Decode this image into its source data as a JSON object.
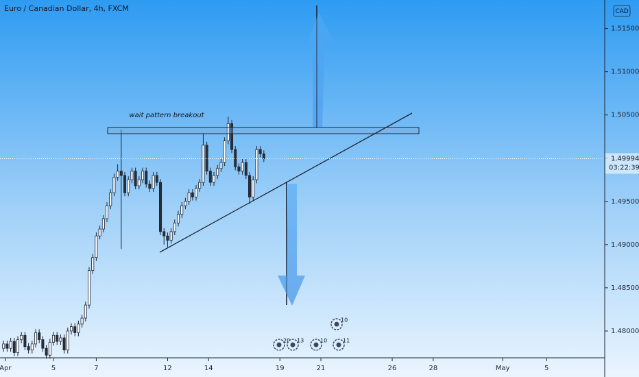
{
  "chart_data": {
    "type": "candlestick",
    "title": "Euro / Canadian Dollar, 4h, FXCM",
    "currency": "CAD",
    "annotation": "wait pattern breakout",
    "up_color": "#ffffff",
    "down_color": "#2a2e39",
    "x": [
      1,
      2,
      3,
      4,
      5,
      6,
      7,
      8,
      9,
      10,
      11,
      12,
      13,
      14,
      15,
      16,
      17,
      18,
      19,
      20,
      21,
      22,
      23,
      24,
      25,
      26,
      27,
      28,
      29,
      30,
      31,
      32,
      33,
      34,
      35,
      36,
      37,
      38,
      39,
      40,
      41,
      42,
      43,
      44,
      45,
      46,
      47,
      48,
      49,
      50,
      51,
      52,
      53,
      54,
      55,
      56,
      57,
      58,
      59,
      60,
      61,
      62,
      63,
      64,
      65,
      66,
      67,
      68,
      69,
      70,
      71,
      72,
      73,
      74
    ],
    "open": [
      1.478,
      1.4785,
      1.478,
      1.4788,
      1.4775,
      1.479,
      1.4795,
      1.4782,
      1.4778,
      1.4785,
      1.4798,
      1.479,
      1.478,
      1.4772,
      1.4787,
      1.4795,
      1.4788,
      1.4792,
      1.4778,
      1.48,
      1.4805,
      1.4798,
      1.4808,
      1.4815,
      1.483,
      1.487,
      1.4885,
      1.491,
      1.4918,
      1.493,
      1.4945,
      1.496,
      1.4978,
      1.4985,
      1.498,
      1.496,
      1.4975,
      1.4985,
      1.4968,
      1.4975,
      1.4985,
      1.497,
      1.4965,
      1.498,
      1.4972,
      1.4915,
      1.491,
      1.4905,
      1.4915,
      1.4925,
      1.4935,
      1.4945,
      1.495,
      1.496,
      1.4955,
      1.4965,
      1.4972,
      1.5015,
      1.4985,
      1.4972,
      1.498,
      1.4988,
      1.4995,
      1.502,
      1.504,
      1.501,
      1.499,
      1.4985,
      1.4995,
      1.498,
      1.4955,
      1.4975,
      1.501,
      1.5005
    ],
    "high": [
      1.4789,
      1.4789,
      1.4792,
      1.4792,
      1.4794,
      1.4799,
      1.4799,
      1.4786,
      1.4789,
      1.4802,
      1.4802,
      1.4794,
      1.4784,
      1.4791,
      1.4799,
      1.4799,
      1.4796,
      1.4796,
      1.4804,
      1.4809,
      1.4809,
      1.4812,
      1.4819,
      1.4834,
      1.4874,
      1.4889,
      1.4914,
      1.4922,
      1.4934,
      1.4949,
      1.4964,
      1.4982,
      1.4993,
      1.5033,
      1.4984,
      1.4979,
      1.4989,
      1.4989,
      1.4979,
      1.4989,
      1.4989,
      1.4974,
      1.4984,
      1.4984,
      1.4976,
      1.4919,
      1.4914,
      1.4919,
      1.4929,
      1.4939,
      1.4949,
      1.4954,
      1.4964,
      1.4964,
      1.4969,
      1.4976,
      1.5028,
      1.5019,
      1.4989,
      1.4984,
      1.4992,
      1.4999,
      1.5024,
      1.5048,
      1.5044,
      1.5014,
      1.4994,
      1.4999,
      1.4999,
      1.4984,
      1.4979,
      1.5014,
      1.5014,
      1.5009
    ],
    "low": [
      1.4776,
      1.4776,
      1.4776,
      1.4771,
      1.4771,
      1.4786,
      1.4778,
      1.4774,
      1.4774,
      1.4781,
      1.4786,
      1.4776,
      1.4768,
      1.4768,
      1.4783,
      1.4784,
      1.4784,
      1.4774,
      1.4774,
      1.4796,
      1.4794,
      1.4794,
      1.4804,
      1.4811,
      1.4826,
      1.4866,
      1.4881,
      1.4906,
      1.4914,
      1.4926,
      1.4941,
      1.4956,
      1.4974,
      1.4895,
      1.4956,
      1.4956,
      1.4971,
      1.4964,
      1.4964,
      1.4971,
      1.4966,
      1.4961,
      1.4961,
      1.4968,
      1.4911,
      1.49,
      1.4897,
      1.4901,
      1.4911,
      1.4921,
      1.4931,
      1.4941,
      1.4946,
      1.4951,
      1.4951,
      1.4961,
      1.4968,
      1.4981,
      1.4968,
      1.4968,
      1.4976,
      1.4984,
      1.4991,
      1.5016,
      1.5006,
      1.4986,
      1.4981,
      1.4981,
      1.4976,
      1.4947,
      1.4951,
      1.4971,
      1.5001,
      1.49954
    ],
    "close": [
      1.4785,
      1.478,
      1.4788,
      1.4775,
      1.479,
      1.4795,
      1.4782,
      1.4778,
      1.4785,
      1.4798,
      1.479,
      1.478,
      1.4772,
      1.4787,
      1.4795,
      1.4788,
      1.4792,
      1.4778,
      1.48,
      1.4805,
      1.4798,
      1.4808,
      1.4815,
      1.483,
      1.487,
      1.4885,
      1.491,
      1.4918,
      1.493,
      1.4945,
      1.496,
      1.4978,
      1.4985,
      1.498,
      1.496,
      1.4975,
      1.4985,
      1.4968,
      1.4975,
      1.4985,
      1.497,
      1.4965,
      1.498,
      1.4972,
      1.4915,
      1.491,
      1.4905,
      1.4915,
      1.4925,
      1.4935,
      1.4945,
      1.495,
      1.496,
      1.4955,
      1.4965,
      1.4972,
      1.5015,
      1.4985,
      1.4972,
      1.498,
      1.4988,
      1.4995,
      1.502,
      1.504,
      1.501,
      1.499,
      1.4985,
      1.4995,
      1.498,
      1.4955,
      1.4975,
      1.501,
      1.5005,
      1.49994
    ],
    "xlim": [
      0,
      169.6
    ],
    "xticks": [
      {
        "value": 1.5,
        "label": "Apr"
      },
      {
        "value": 15,
        "label": "5"
      },
      {
        "value": 27,
        "label": "7"
      },
      {
        "value": 47,
        "label": "12"
      },
      {
        "value": 58.5,
        "label": "14"
      },
      {
        "value": 78.5,
        "label": "19"
      },
      {
        "value": 90,
        "label": "21"
      },
      {
        "value": 110,
        "label": "26"
      },
      {
        "value": 121.5,
        "label": "28"
      },
      {
        "value": 141,
        "label": "May"
      },
      {
        "value": 153.3,
        "label": "5"
      }
    ],
    "ylim": [
      1.4769,
      1.5183
    ],
    "yticks": [
      {
        "value": 1.515,
        "label": "1.51500"
      },
      {
        "value": 1.51,
        "label": "1.51000"
      },
      {
        "value": 1.505,
        "label": "1.50500"
      },
      {
        "value": 1.5,
        "label": "1.50000"
      },
      {
        "value": 1.495,
        "label": "1.49500"
      },
      {
        "value": 1.49,
        "label": "1.49000"
      },
      {
        "value": 1.485,
        "label": "1.48500"
      },
      {
        "value": 1.48,
        "label": "1.48000"
      }
    ],
    "last_price": {
      "value": 1.49994,
      "label": "1.49994"
    },
    "countdown": "03:22:39",
    "events": [
      "20",
      "13",
      "10",
      "10",
      "11"
    ]
  }
}
